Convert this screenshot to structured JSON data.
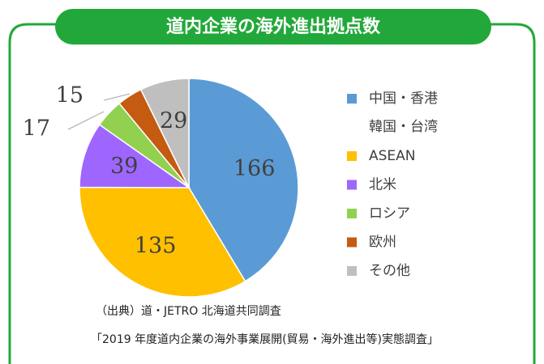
{
  "chart_data": {
    "type": "pie",
    "title": "道内企業の海外進出拠点数",
    "categories": [
      "中国・香港\n韓国・台湾",
      "ASEAN",
      "北米",
      "ロシア",
      "欧州",
      "その他"
    ],
    "values": [
      166,
      135,
      39,
      17,
      15,
      29
    ],
    "colors": [
      "#5b9bd5",
      "#ffc000",
      "#9e66ff",
      "#92d050",
      "#c55a11",
      "#bfbfbf"
    ],
    "legend": "right",
    "source": [
      "（出典）道・JETRO 北海道共同調査",
      "「2019 年度道内企業の海外事業展開(貿易・海外進出等)実態調査」"
    ]
  }
}
